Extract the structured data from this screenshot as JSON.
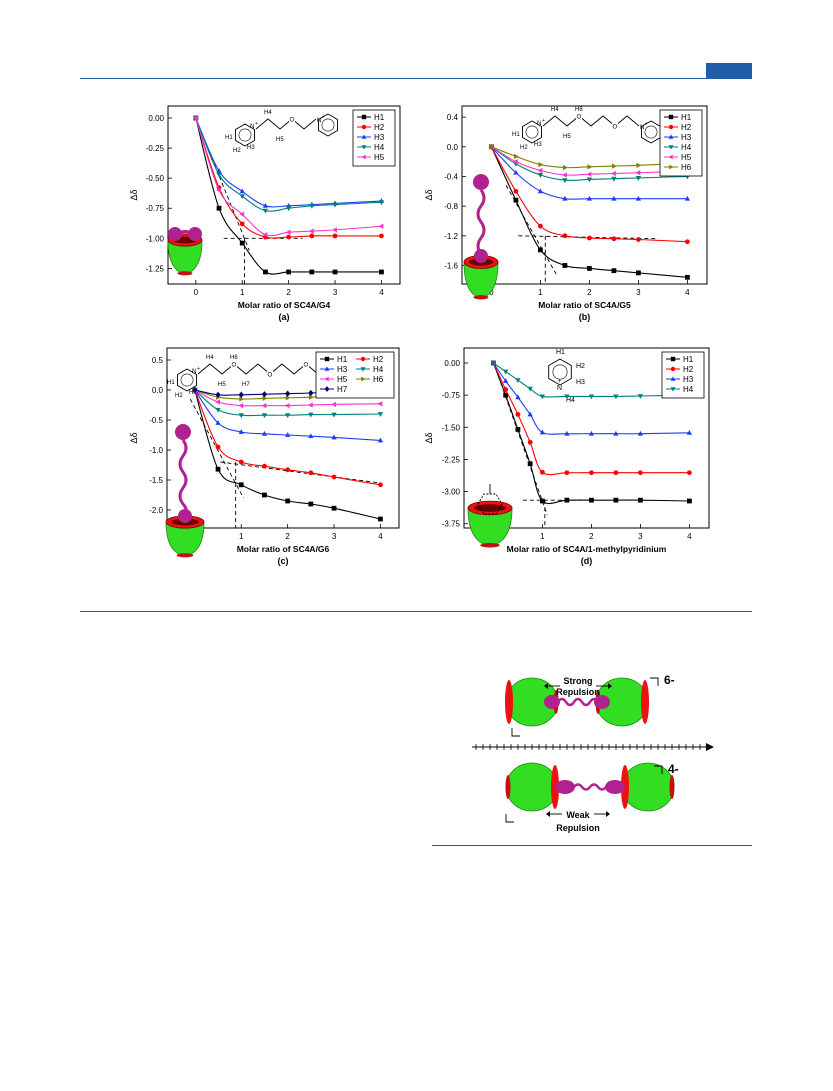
{
  "colors": {
    "rule": "#1f5fa8",
    "H1": "#000000",
    "H2": "#ff0000",
    "H3": "#1e3cff",
    "H4": "#008080",
    "H5": "#ff33cc",
    "H6": "#808000",
    "H7": "#000080",
    "cavitand_body": "#33dd22",
    "cavitand_rim": "#ee1111",
    "guest": "#b0228f"
  },
  "chart_data": [
    {
      "type": "line",
      "panel_label": "(a)",
      "xlabel": "Molar ratio of SC4A/G4",
      "ylabel": "Δδ",
      "xlim": [
        -0.6,
        4.4
      ],
      "ylim": [
        -1.38,
        0.1
      ],
      "xticks": [
        0,
        1,
        2,
        3,
        4
      ],
      "yticks": [
        0.0,
        -0.25,
        -0.5,
        -0.75,
        -1.0,
        -1.25
      ],
      "ytick_labels": [
        "0.00",
        "-0.25",
        "-0.50",
        "-0.75",
        "-1.00",
        "-1.25"
      ],
      "legend_position": "top-right",
      "legend_columns": 1,
      "x": [
        0,
        0.5,
        1,
        1.5,
        2,
        2.5,
        3,
        4
      ],
      "series": [
        {
          "name": "H1",
          "marker": "square",
          "values": [
            0.0,
            -0.75,
            -1.04,
            -1.28,
            -1.28,
            -1.28,
            -1.28,
            -1.28
          ]
        },
        {
          "name": "H2",
          "marker": "circle",
          "values": [
            0.0,
            -0.58,
            -0.88,
            -0.99,
            -0.99,
            -0.98,
            -0.98,
            -0.98
          ]
        },
        {
          "name": "H3",
          "marker": "triangle-up",
          "values": [
            0.0,
            -0.44,
            -0.61,
            -0.73,
            -0.73,
            -0.72,
            -0.71,
            -0.69
          ]
        },
        {
          "name": "H4",
          "marker": "triangle-down",
          "values": [
            0.0,
            -0.47,
            -0.65,
            -0.77,
            -0.75,
            -0.73,
            -0.72,
            -0.7
          ]
        },
        {
          "name": "H5",
          "marker": "triangle-left",
          "values": [
            0.0,
            -0.6,
            -0.8,
            -0.97,
            -0.95,
            -0.94,
            -0.93,
            -0.9
          ]
        }
      ],
      "guide_lines": {
        "tangent": [
          [
            0,
            0
          ],
          [
            1.15,
            -1.1
          ]
        ],
        "plateau": [
          [
            0.6,
            -1.0
          ],
          [
            2.3,
            -1.0
          ]
        ],
        "drop_x": 1.05
      }
    },
    {
      "type": "line",
      "panel_label": "(b)",
      "xlabel": "Molar ratio of SC4A/G5",
      "ylabel": "Δδ",
      "xlim": [
        -0.6,
        4.4
      ],
      "ylim": [
        -1.85,
        0.55
      ],
      "xticks": [
        0,
        1,
        2,
        3,
        4
      ],
      "yticks": [
        0.4,
        0.0,
        -0.4,
        -0.8,
        -1.2,
        -1.6
      ],
      "ytick_labels": [
        "0.4",
        "0.0",
        "-0.4",
        "-0.8",
        "-1.2",
        "-1.6"
      ],
      "legend_position": "top-right",
      "legend_columns": 1,
      "x": [
        0,
        0.5,
        1,
        1.5,
        2,
        2.5,
        3,
        4
      ],
      "series": [
        {
          "name": "H1",
          "marker": "square",
          "values": [
            0.0,
            -0.72,
            -1.39,
            -1.6,
            -1.64,
            -1.67,
            -1.7,
            -1.76
          ]
        },
        {
          "name": "H2",
          "marker": "circle",
          "values": [
            0.0,
            -0.6,
            -1.07,
            -1.2,
            -1.23,
            -1.24,
            -1.25,
            -1.28
          ]
        },
        {
          "name": "H3",
          "marker": "triangle-up",
          "values": [
            0.0,
            -0.35,
            -0.6,
            -0.7,
            -0.7,
            -0.7,
            -0.7,
            -0.7
          ]
        },
        {
          "name": "H4",
          "marker": "triangle-down",
          "values": [
            0.0,
            -0.23,
            -0.38,
            -0.45,
            -0.44,
            -0.43,
            -0.42,
            -0.4
          ]
        },
        {
          "name": "H5",
          "marker": "triangle-left",
          "values": [
            0.0,
            -0.2,
            -0.32,
            -0.38,
            -0.37,
            -0.36,
            -0.35,
            -0.33
          ]
        },
        {
          "name": "H6",
          "marker": "triangle-right",
          "values": [
            0.0,
            -0.13,
            -0.24,
            -0.28,
            -0.27,
            -0.26,
            -0.25,
            -0.22
          ]
        }
      ],
      "guide_lines": {
        "tangent": [
          [
            0.3,
            -0.52
          ],
          [
            1.35,
            -1.75
          ]
        ],
        "plateau": [
          [
            0.55,
            -1.2
          ],
          [
            3.4,
            -1.24
          ]
        ],
        "drop_x": 1.1
      }
    },
    {
      "type": "line",
      "panel_label": "(c)",
      "xlabel": "Molar ratio of SC4A/G6",
      "ylabel": "Δδ",
      "xlim": [
        -0.6,
        4.4
      ],
      "ylim": [
        -2.3,
        0.7
      ],
      "xticks": [
        0,
        1,
        2,
        3,
        4
      ],
      "yticks": [
        0.5,
        0.0,
        -0.5,
        -1.0,
        -1.5,
        -2.0
      ],
      "ytick_labels": [
        "0.5",
        "0.0",
        "-0.5",
        "-1.0",
        "-1.5",
        "-2.0"
      ],
      "legend_position": "top-right",
      "legend_columns": 2,
      "x": [
        0,
        0.5,
        1,
        1.5,
        2,
        2.5,
        3,
        4
      ],
      "series": [
        {
          "name": "H1",
          "marker": "square",
          "values": [
            0.0,
            -1.32,
            -1.58,
            -1.75,
            -1.85,
            -1.9,
            -1.97,
            -2.15
          ]
        },
        {
          "name": "H2",
          "marker": "circle",
          "values": [
            0.0,
            -0.95,
            -1.2,
            -1.27,
            -1.33,
            -1.38,
            -1.45,
            -1.58
          ]
        },
        {
          "name": "H3",
          "marker": "triangle-up",
          "values": [
            0.0,
            -0.55,
            -0.7,
            -0.73,
            -0.75,
            -0.77,
            -0.79,
            -0.84
          ]
        },
        {
          "name": "H4",
          "marker": "triangle-down",
          "values": [
            0.0,
            -0.33,
            -0.42,
            -0.42,
            -0.42,
            -0.41,
            -0.41,
            -0.4
          ]
        },
        {
          "name": "H5",
          "marker": "triangle-left",
          "values": [
            0.0,
            -0.2,
            -0.26,
            -0.26,
            -0.26,
            -0.25,
            -0.24,
            -0.23
          ]
        },
        {
          "name": "H6",
          "marker": "triangle-right",
          "values": [
            0.0,
            -0.12,
            -0.15,
            -0.14,
            -0.13,
            -0.12,
            -0.1,
            -0.08
          ]
        },
        {
          "name": "H7",
          "marker": "diamond",
          "values": [
            0.0,
            -0.08,
            -0.08,
            -0.07,
            -0.06,
            -0.05,
            -0.03,
            0.0
          ]
        }
      ],
      "guide_lines": {
        "tangent": [
          [
            -0.1,
            -0.15
          ],
          [
            1.05,
            -1.8
          ]
        ],
        "plateau": [
          [
            0.55,
            -1.2
          ],
          [
            4.0,
            -1.55
          ]
        ],
        "drop_x": 0.88
      }
    },
    {
      "type": "line",
      "panel_label": "(d)",
      "xlabel": "Molar ratio of SC4A/1-methylpyridinium",
      "ylabel": "Δδ",
      "xlim": [
        -0.6,
        4.4
      ],
      "ylim": [
        -3.85,
        0.35
      ],
      "xticks": [
        0,
        1,
        2,
        3,
        4
      ],
      "yticks": [
        0.0,
        -0.75,
        -1.5,
        -2.25,
        -3.0,
        -3.75
      ],
      "ytick_labels": [
        "0.00",
        "-0.75",
        "-1.50",
        "-2.25",
        "-3.00",
        "-3.75"
      ],
      "legend_position": "top-right",
      "legend_columns": 1,
      "x": [
        0,
        0.25,
        0.5,
        0.75,
        1,
        1.5,
        2,
        2.5,
        3,
        4
      ],
      "series": [
        {
          "name": "H1",
          "marker": "square",
          "values": [
            0.0,
            -0.75,
            -1.55,
            -2.35,
            -3.22,
            -3.2,
            -3.2,
            -3.2,
            -3.2,
            -3.22
          ]
        },
        {
          "name": "H2",
          "marker": "circle",
          "values": [
            0.0,
            -0.62,
            -1.2,
            -1.85,
            -2.55,
            -2.56,
            -2.56,
            -2.56,
            -2.56,
            -2.56
          ]
        },
        {
          "name": "H3",
          "marker": "triangle-up",
          "values": [
            0.0,
            -0.42,
            -0.8,
            -1.2,
            -1.62,
            -1.65,
            -1.65,
            -1.65,
            -1.65,
            -1.63
          ]
        },
        {
          "name": "H4",
          "marker": "triangle-down",
          "values": [
            0.0,
            -0.2,
            -0.4,
            -0.6,
            -0.78,
            -0.78,
            -0.78,
            -0.78,
            -0.77,
            -0.75
          ]
        }
      ],
      "guide_lines": {
        "tangent": [
          [
            0.1,
            -0.3
          ],
          [
            1.1,
            -3.55
          ]
        ],
        "plateau": [
          [
            0.6,
            -3.2
          ],
          [
            1.8,
            -3.2
          ]
        ],
        "drop_x": 1.05
      }
    }
  ],
  "structures": {
    "g4": {
      "labels": [
        "H1",
        "H2",
        "H3",
        "H4",
        "H5"
      ]
    },
    "g5": {
      "labels": [
        "H1",
        "H2",
        "H3",
        "H4",
        "H5",
        "H6"
      ]
    },
    "g6": {
      "labels": [
        "H1",
        "H2",
        "H3",
        "H4",
        "H5",
        "H6",
        "H7"
      ]
    },
    "mp": {
      "labels": [
        "H1",
        "H2",
        "H3",
        "H4"
      ]
    }
  },
  "scheme": {
    "top_label": "Strong",
    "top_label2": "Repulsion",
    "top_charge": "6-",
    "bottom_label": "Weak",
    "bottom_label2": "Repulsion",
    "bottom_charge": "4-"
  }
}
